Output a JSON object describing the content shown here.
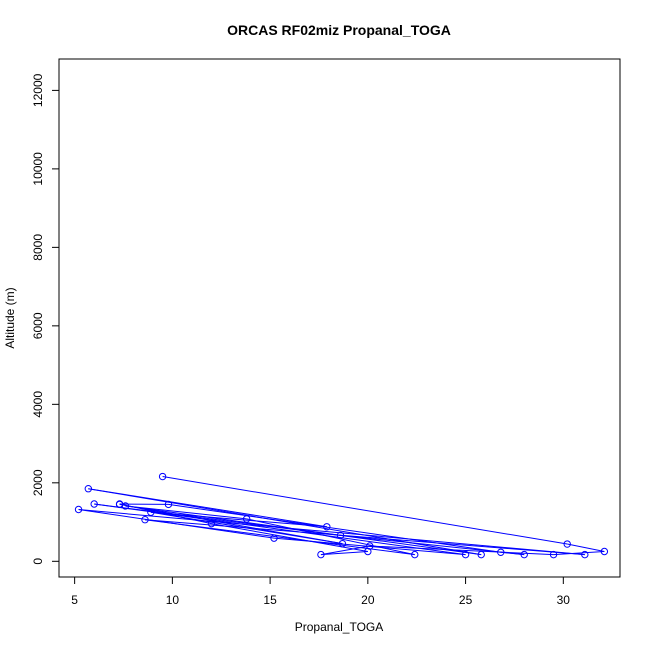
{
  "chart_data": {
    "type": "line",
    "title": "ORCAS RF02miz Propanal_TOGA",
    "xlabel": "Propanal_TOGA",
    "ylabel": "Altitude (m)",
    "xlim": [
      4.2,
      32.9
    ],
    "ylim": [
      -400,
      12800
    ],
    "xticks": [
      5,
      10,
      15,
      20,
      25,
      30
    ],
    "yticks": [
      0,
      2000,
      4000,
      6000,
      8000,
      10000,
      12000
    ],
    "grid": false,
    "legend": "none",
    "line_color": "#0000ff",
    "marker": "open-circle",
    "series": [
      {
        "points": [
          [
            9.5,
            2160
          ],
          [
            30.2,
            440
          ],
          [
            32.1,
            250
          ],
          [
            29.5,
            170
          ],
          [
            20.1,
            390
          ],
          [
            17.6,
            170
          ],
          [
            20.0,
            250
          ],
          [
            12.0,
            960
          ],
          [
            7.3,
            1460
          ],
          [
            9.8,
            1450
          ],
          [
            26.8,
            230
          ],
          [
            28.0,
            170
          ],
          [
            18.6,
            660
          ],
          [
            6.0,
            1460
          ],
          [
            25.0,
            170
          ],
          [
            15.2,
            590
          ],
          [
            5.2,
            1320
          ],
          [
            31.1,
            170
          ],
          [
            8.6,
            1060
          ],
          [
            22.4,
            170
          ],
          [
            13.8,
            1080
          ],
          [
            7.6,
            1410
          ],
          [
            25.8,
            170
          ],
          [
            5.7,
            1850
          ],
          [
            17.9,
            880
          ],
          [
            8.9,
            1250
          ],
          [
            18.7,
            450
          ],
          [
            7.3,
            1450
          ]
        ]
      }
    ]
  }
}
